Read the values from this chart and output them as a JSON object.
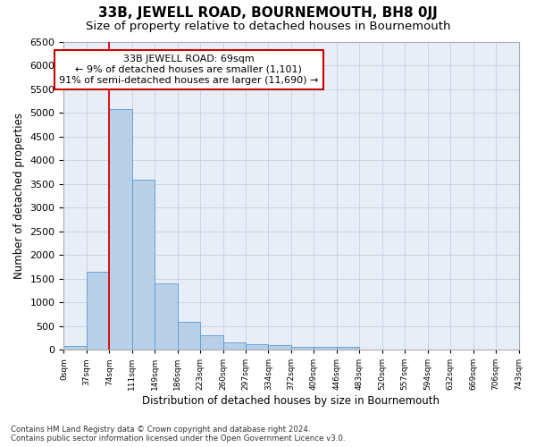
{
  "title": "33B, JEWELL ROAD, BOURNEMOUTH, BH8 0JJ",
  "subtitle": "Size of property relative to detached houses in Bournemouth",
  "xlabel": "Distribution of detached houses by size in Bournemouth",
  "ylabel": "Number of detached properties",
  "footer_line1": "Contains HM Land Registry data © Crown copyright and database right 2024.",
  "footer_line2": "Contains public sector information licensed under the Open Government Licence v3.0.",
  "bin_labels": [
    "0sqm",
    "37sqm",
    "74sqm",
    "111sqm",
    "149sqm",
    "186sqm",
    "223sqm",
    "260sqm",
    "297sqm",
    "334sqm",
    "372sqm",
    "409sqm",
    "446sqm",
    "483sqm",
    "520sqm",
    "557sqm",
    "594sqm",
    "632sqm",
    "669sqm",
    "706sqm",
    "743sqm"
  ],
  "bar_values": [
    75,
    1640,
    5080,
    3590,
    1400,
    580,
    295,
    150,
    120,
    90,
    65,
    60,
    50,
    0,
    0,
    0,
    0,
    0,
    0,
    0
  ],
  "bar_color": "#b8cfe8",
  "bar_edge_color": "#5b9bd5",
  "grid_color": "#c8d4e8",
  "annotation_text_line1": "33B JEWELL ROAD: 69sqm",
  "annotation_text_line2": "← 9% of detached houses are smaller (1,101)",
  "annotation_text_line3": "91% of semi-detached houses are larger (11,690) →",
  "annotation_box_color": "#ffffff",
  "annotation_box_edge_color": "#cc0000",
  "red_line_x": 2,
  "ylim": [
    0,
    6500
  ],
  "yticks": [
    0,
    500,
    1000,
    1500,
    2000,
    2500,
    3000,
    3500,
    4000,
    4500,
    5000,
    5500,
    6000,
    6500
  ],
  "axes_facecolor": "#e8eef8",
  "title_fontsize": 11,
  "subtitle_fontsize": 9.5,
  "xlabel_fontsize": 8.5,
  "ylabel_fontsize": 8.5,
  "tick_fontsize": 8,
  "annot_fontsize": 8
}
